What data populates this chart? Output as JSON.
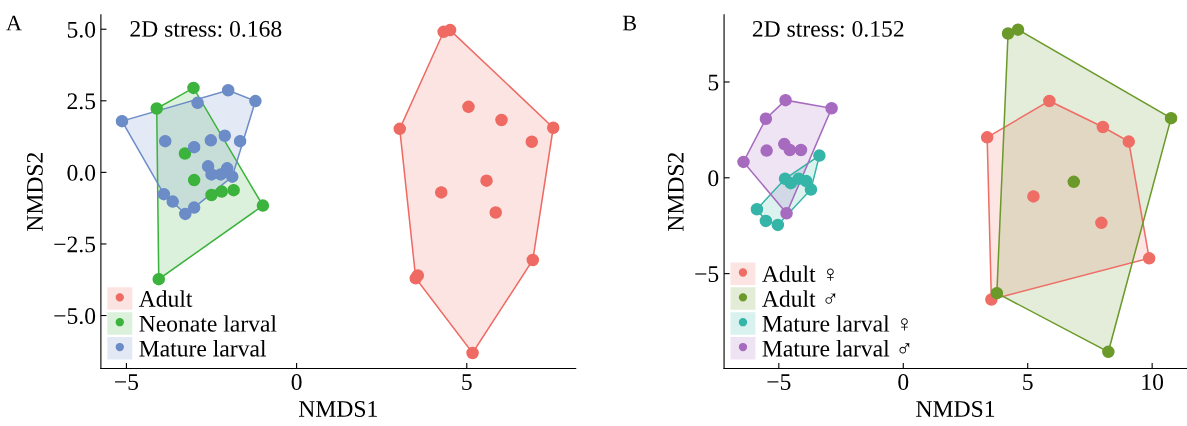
{
  "chart_data": [
    {
      "type": "scatter",
      "xlabel": "NMDS1",
      "ylabel": "NMDS2",
      "annotations": [
        "A",
        "2D stress: 0.168"
      ],
      "xlim": [
        -5.75,
        8.2
      ],
      "ylim": [
        -6.85,
        5.5
      ],
      "xticks": [
        {
          "value": -5,
          "label": "−5"
        },
        0,
        5
      ],
      "yticks": [
        {
          "value": 5,
          "label": "5.0"
        },
        2.5,
        {
          "value": 0,
          "label": "0.0"
        },
        {
          "value": -2.5,
          "label": "−2.5"
        },
        {
          "value": -5,
          "label": "−5.0"
        }
      ],
      "legend": "bottom left",
      "marker": "circle",
      "grid": false,
      "series": [
        {
          "name": "Adult",
          "color": "#ee6a62",
          "x": [
            4.32,
            4.51,
            3.03,
            5.05,
            6.02,
            7.54,
            6.91,
            5.58,
            4.25,
            5.85,
            6.94,
            3.5,
            3.56,
            5.17
          ],
          "values": [
            4.91,
            4.97,
            1.52,
            2.29,
            1.83,
            1.56,
            1.07,
            -0.29,
            -0.7,
            -1.4,
            -3.06,
            -3.7,
            -3.6,
            -6.31
          ]
        },
        {
          "name": "Neonate larval",
          "color": "#3cb33c",
          "x": [
            -3.03,
            -4.11,
            -3.28,
            -3.01,
            -2.5,
            -2.2,
            -1.85,
            -0.99,
            -4.05
          ],
          "values": [
            2.95,
            2.23,
            0.66,
            -0.27,
            -0.79,
            -0.67,
            -0.62,
            -1.16,
            -3.73
          ]
        },
        {
          "name": "Mature larval",
          "color": "#6b8cc7",
          "x": [
            -5.13,
            -2.91,
            -2.01,
            -1.21,
            -3.86,
            -3.01,
            -2.52,
            -2.11,
            -1.66,
            -2.6,
            -2.5,
            -2.23,
            -2.04,
            -1.89,
            -3.9,
            -3.64,
            -3.27,
            -3.01
          ],
          "values": [
            1.79,
            2.43,
            2.87,
            2.49,
            1.09,
            0.88,
            1.12,
            1.28,
            1.09,
            0.21,
            -0.07,
            -0.07,
            0.14,
            -0.15,
            -0.76,
            -1.02,
            -1.45,
            -1.23
          ]
        }
      ]
    },
    {
      "type": "scatter",
      "xlabel": "NMDS1",
      "ylabel": "NMDS2",
      "annotations": [
        "B",
        "2D stress: 0.152"
      ],
      "xlim": [
        -7.2,
        11.4
      ],
      "ylim": [
        -9.95,
        8.5
      ],
      "xticks": [
        {
          "value": -5,
          "label": "−5"
        },
        0,
        5,
        10
      ],
      "yticks": [
        5,
        0,
        {
          "value": -5,
          "label": "−5"
        }
      ],
      "legend": "bottom left",
      "marker": "circle",
      "grid": false,
      "series": [
        {
          "name": "Adult ♀",
          "color": "#ee6e66",
          "x": [
            3.37,
            5.87,
            8.02,
            9.06,
            5.23,
            7.96,
            9.88,
            3.54
          ],
          "values": [
            2.11,
            4.01,
            2.65,
            1.89,
            -0.97,
            -2.35,
            -4.2,
            -6.35
          ]
        },
        {
          "name": "Adult ♂",
          "color": "#6b9a2a",
          "x": [
            4.21,
            4.61,
            10.76,
            6.85,
            3.76,
            8.24
          ],
          "values": [
            7.53,
            7.73,
            3.11,
            -0.21,
            -6.02,
            -9.08
          ]
        },
        {
          "name": "Mature larval ♀",
          "color": "#35b5a8",
          "x": [
            -3.37,
            -4.75,
            -4.52,
            -4.2,
            -3.9,
            -3.71,
            -5.88,
            -5.52,
            -5.04
          ],
          "values": [
            1.16,
            -0.05,
            -0.28,
            -0.05,
            -0.17,
            -0.61,
            -1.64,
            -2.25,
            -2.46
          ]
        },
        {
          "name": "Mature larval ♂",
          "color": "#a66bbf",
          "x": [
            -6.42,
            -5.52,
            -4.73,
            -2.88,
            -5.49,
            -4.78,
            -4.56,
            -4.11,
            -4.69
          ],
          "values": [
            0.83,
            3.08,
            4.05,
            3.63,
            1.42,
            1.76,
            1.45,
            1.45,
            -1.85
          ]
        }
      ]
    }
  ]
}
